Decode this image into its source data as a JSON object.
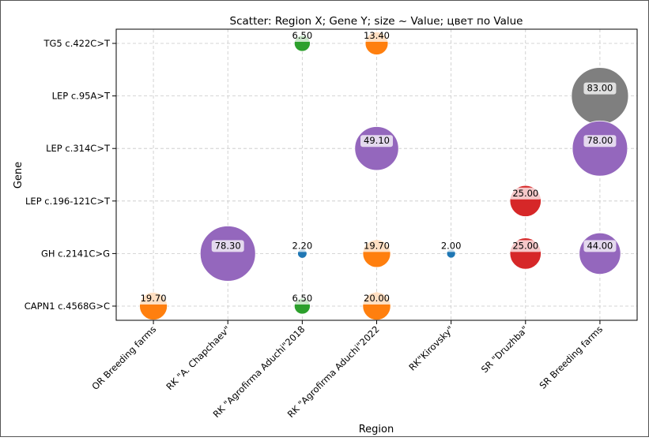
{
  "chart_data": {
    "type": "scatter",
    "title": "Scatter: Region X; Gene Y; size ~ Value; цвет по Value",
    "xlabel": "Region",
    "ylabel": "Gene",
    "x_categories": [
      "OR Breeding farms",
      "RK \"A. Chapchaev\"",
      "RK \"Agrofirma Aduchi\"2018",
      "RK \"Agrofirma Aduchi\"2022",
      "RK\"Kirovsky\"",
      "SR \"Druzhba\"",
      "SR Breeding farms"
    ],
    "y_categories": [
      "CAPN1 c.4568G>C",
      "GH c.2141C>G",
      "LEP c.196-121C>T",
      "LEP c.314C>T",
      "LEP c.95A>T",
      "TG5 c.422C>T"
    ],
    "grid": true,
    "points": [
      {
        "region": "OR Breeding farms",
        "gene": "CAPN1 c.4568G>C",
        "value": 19.7,
        "label": "19.70",
        "color": "#ff7f0e"
      },
      {
        "region": "RK \"A. Chapchaev\"",
        "gene": "GH c.2141C>G",
        "value": 78.3,
        "label": "78.30",
        "color": "#9467bd"
      },
      {
        "region": "RK \"Agrofirma Aduchi\"2018",
        "gene": "TG5 c.422C>T",
        "value": 6.5,
        "label": "6.50",
        "color": "#2ca02c"
      },
      {
        "region": "RK \"Agrofirma Aduchi\"2018",
        "gene": "GH c.2141C>G",
        "value": 2.2,
        "label": "2.20",
        "color": "#1f77b4"
      },
      {
        "region": "RK \"Agrofirma Aduchi\"2018",
        "gene": "CAPN1 c.4568G>C",
        "value": 6.5,
        "label": "6.50",
        "color": "#2ca02c"
      },
      {
        "region": "RK \"Agrofirma Aduchi\"2022",
        "gene": "TG5 c.422C>T",
        "value": 13.4,
        "label": "13.40",
        "color": "#ff7f0e"
      },
      {
        "region": "RK \"Agrofirma Aduchi\"2022",
        "gene": "LEP c.314C>T",
        "value": 49.1,
        "label": "49.10",
        "color": "#9467bd"
      },
      {
        "region": "RK \"Agrofirma Aduchi\"2022",
        "gene": "GH c.2141C>G",
        "value": 19.7,
        "label": "19.70",
        "color": "#ff7f0e"
      },
      {
        "region": "RK \"Agrofirma Aduchi\"2022",
        "gene": "CAPN1 c.4568G>C",
        "value": 20.0,
        "label": "20.00",
        "color": "#ff7f0e"
      },
      {
        "region": "RK\"Kirovsky\"",
        "gene": "GH c.2141C>G",
        "value": 2.0,
        "label": "2.00",
        "color": "#1f77b4"
      },
      {
        "region": "SR \"Druzhba\"",
        "gene": "LEP c.196-121C>T",
        "value": 25.0,
        "label": "25.00",
        "color": "#d62728"
      },
      {
        "region": "SR \"Druzhba\"",
        "gene": "GH c.2141C>G",
        "value": 25.0,
        "label": "25.00",
        "color": "#d62728"
      },
      {
        "region": "SR Breeding farms",
        "gene": "LEP c.95A>T",
        "value": 83.0,
        "label": "83.00",
        "color": "#7f7f7f"
      },
      {
        "region": "SR Breeding farms",
        "gene": "LEP c.314C>T",
        "value": 78.0,
        "label": "78.00",
        "color": "#9467bd"
      },
      {
        "region": "SR Breeding farms",
        "gene": "GH c.2141C>G",
        "value": 44.0,
        "label": "44.00",
        "color": "#9467bd"
      }
    ]
  }
}
